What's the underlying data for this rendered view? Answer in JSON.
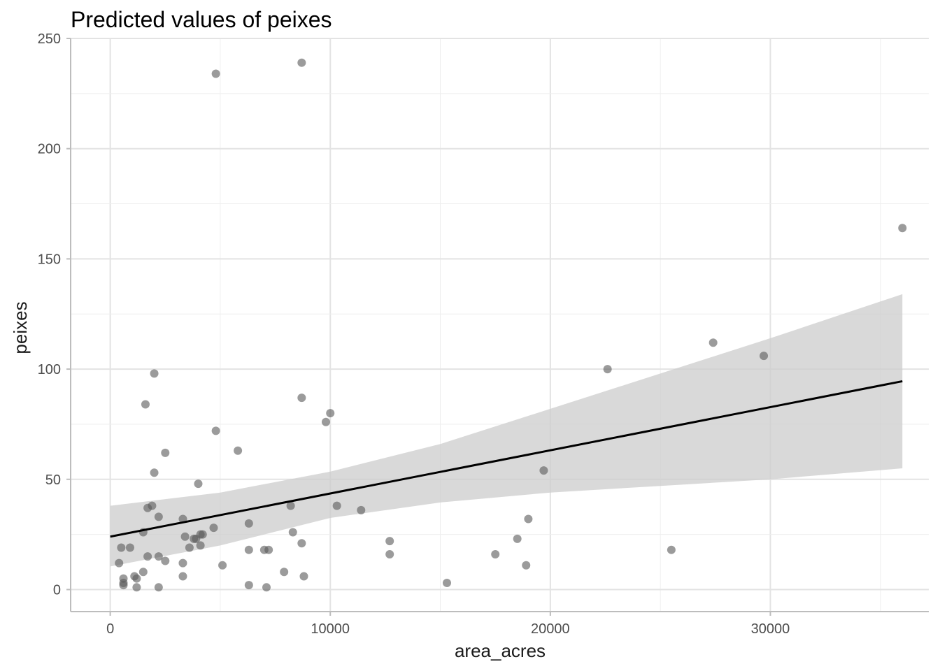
{
  "chart_data": {
    "type": "scatter",
    "title": "Predicted values of peixes",
    "xlabel": "area_acres",
    "ylabel": "peixes",
    "xlim": [
      -1800,
      37200
    ],
    "ylim": [
      -10,
      250
    ],
    "x_ticks": [
      0,
      10000,
      20000,
      30000
    ],
    "x_tick_labels": [
      "0",
      "10000",
      "20000",
      "30000"
    ],
    "y_ticks": [
      0,
      50,
      100,
      150,
      200,
      250
    ],
    "y_tick_labels": [
      "0",
      "50",
      "100",
      "150",
      "200",
      "250"
    ],
    "grid": true,
    "colors": {
      "points": "#595959",
      "line": "#000000",
      "ribbon": "#cccccc",
      "grid_major": "#e3e3e3",
      "grid_minor": "#eeeeee",
      "axis": "#bdbdbd"
    },
    "fit_line": {
      "x": [
        0,
        36000
      ],
      "y": [
        24,
        94.5
      ]
    },
    "confidence_band": {
      "x": [
        0,
        5000,
        10000,
        15000,
        20000,
        25000,
        30000,
        36000
      ],
      "upper": [
        38,
        44,
        53.5,
        66,
        82,
        98,
        114,
        134
      ],
      "lower": [
        10.5,
        20,
        32.5,
        39.5,
        44,
        47,
        50,
        55
      ]
    },
    "points": [
      {
        "x": 4800,
        "y": 234
      },
      {
        "x": 8700,
        "y": 239
      },
      {
        "x": 36000,
        "y": 164
      },
      {
        "x": 2000,
        "y": 98
      },
      {
        "x": 1600,
        "y": 84
      },
      {
        "x": 8700,
        "y": 87
      },
      {
        "x": 4800,
        "y": 72
      },
      {
        "x": 10000,
        "y": 80
      },
      {
        "x": 9800,
        "y": 76
      },
      {
        "x": 5800,
        "y": 63
      },
      {
        "x": 2500,
        "y": 62
      },
      {
        "x": 2000,
        "y": 53
      },
      {
        "x": 4000,
        "y": 48
      },
      {
        "x": 1700,
        "y": 37
      },
      {
        "x": 1900,
        "y": 38
      },
      {
        "x": 2200,
        "y": 33
      },
      {
        "x": 3300,
        "y": 32
      },
      {
        "x": 8200,
        "y": 38
      },
      {
        "x": 10300,
        "y": 38
      },
      {
        "x": 11400,
        "y": 36
      },
      {
        "x": 6300,
        "y": 30
      },
      {
        "x": 4700,
        "y": 28
      },
      {
        "x": 1500,
        "y": 26
      },
      {
        "x": 3400,
        "y": 24
      },
      {
        "x": 3800,
        "y": 23
      },
      {
        "x": 3900,
        "y": 23
      },
      {
        "x": 4100,
        "y": 25
      },
      {
        "x": 4200,
        "y": 25
      },
      {
        "x": 3600,
        "y": 19
      },
      {
        "x": 4100,
        "y": 20
      },
      {
        "x": 8300,
        "y": 26
      },
      {
        "x": 8700,
        "y": 21
      },
      {
        "x": 12700,
        "y": 22
      },
      {
        "x": 12700,
        "y": 16
      },
      {
        "x": 500,
        "y": 19
      },
      {
        "x": 900,
        "y": 19
      },
      {
        "x": 1700,
        "y": 15
      },
      {
        "x": 2200,
        "y": 15
      },
      {
        "x": 2500,
        "y": 13
      },
      {
        "x": 3300,
        "y": 12
      },
      {
        "x": 6300,
        "y": 18
      },
      {
        "x": 7000,
        "y": 18
      },
      {
        "x": 7200,
        "y": 18
      },
      {
        "x": 5100,
        "y": 11
      },
      {
        "x": 400,
        "y": 12
      },
      {
        "x": 1500,
        "y": 8
      },
      {
        "x": 7900,
        "y": 8
      },
      {
        "x": 8800,
        "y": 6
      },
      {
        "x": 3300,
        "y": 6
      },
      {
        "x": 1100,
        "y": 6
      },
      {
        "x": 1200,
        "y": 5
      },
      {
        "x": 600,
        "y": 5
      },
      {
        "x": 600,
        "y": 3
      },
      {
        "x": 600,
        "y": 2
      },
      {
        "x": 1200,
        "y": 1
      },
      {
        "x": 2200,
        "y": 1
      },
      {
        "x": 6300,
        "y": 2
      },
      {
        "x": 7100,
        "y": 1
      },
      {
        "x": 15300,
        "y": 3
      },
      {
        "x": 17500,
        "y": 16
      },
      {
        "x": 18500,
        "y": 23
      },
      {
        "x": 19000,
        "y": 32
      },
      {
        "x": 18900,
        "y": 11
      },
      {
        "x": 19700,
        "y": 54
      },
      {
        "x": 22600,
        "y": 100
      },
      {
        "x": 25500,
        "y": 18
      },
      {
        "x": 27400,
        "y": 112
      },
      {
        "x": 29700,
        "y": 106
      }
    ]
  }
}
